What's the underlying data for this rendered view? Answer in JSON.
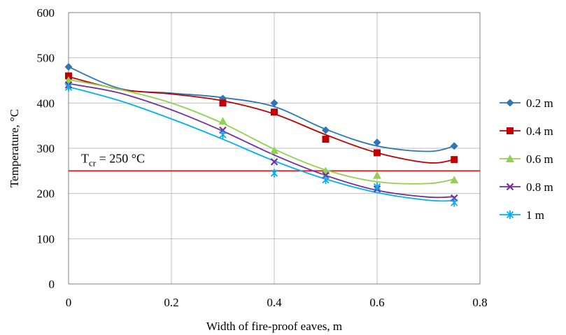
{
  "chart_data": {
    "type": "scatter",
    "xlabel": "Width of fire-proof eaves, m",
    "ylabel": "Temperature, °C",
    "xlim": [
      0,
      0.8
    ],
    "ylim": [
      0,
      600
    ],
    "xticks": [
      0,
      0.2,
      0.4,
      0.6,
      0.8
    ],
    "xtick_labels": [
      "0",
      "0.2",
      "0.4",
      "0.6",
      "0.8"
    ],
    "yticks": [
      0,
      100,
      200,
      300,
      400,
      500,
      600
    ],
    "ytick_labels": [
      "0",
      "100",
      "200",
      "300",
      "400",
      "500",
      "600"
    ],
    "grid": true,
    "legend_position": "right",
    "x": [
      0,
      0.3,
      0.4,
      0.5,
      0.6,
      0.75
    ],
    "series": [
      {
        "name": "0.2 m",
        "color": "#2e75b6",
        "marker": "diamond",
        "values": [
          480,
          410,
          400,
          340,
          313,
          305
        ],
        "trend": [
          [
            0,
            480
          ],
          [
            0.1,
            432
          ],
          [
            0.2,
            422
          ],
          [
            0.3,
            412
          ],
          [
            0.4,
            392
          ],
          [
            0.5,
            342
          ],
          [
            0.6,
            305
          ],
          [
            0.7,
            293
          ],
          [
            0.75,
            305
          ]
        ]
      },
      {
        "name": "0.4 m",
        "color": "#c00000",
        "marker": "square",
        "values": [
          460,
          400,
          380,
          320,
          290,
          275
        ],
        "trend": [
          [
            0,
            458
          ],
          [
            0.1,
            430
          ],
          [
            0.2,
            420
          ],
          [
            0.3,
            405
          ],
          [
            0.4,
            376
          ],
          [
            0.5,
            330
          ],
          [
            0.6,
            290
          ],
          [
            0.7,
            268
          ],
          [
            0.75,
            275
          ]
        ]
      },
      {
        "name": "0.6 m",
        "color": "#92d050",
        "marker": "triangle",
        "values": [
          450,
          360,
          295,
          250,
          240,
          230
        ],
        "trend": [
          [
            0,
            452
          ],
          [
            0.1,
            430
          ],
          [
            0.2,
            400
          ],
          [
            0.3,
            355
          ],
          [
            0.4,
            298
          ],
          [
            0.5,
            252
          ],
          [
            0.6,
            226
          ],
          [
            0.7,
            222
          ],
          [
            0.75,
            232
          ]
        ]
      },
      {
        "name": "0.8 m",
        "color": "#7030a0",
        "marker": "x",
        "values": [
          440,
          340,
          270,
          240,
          210,
          190
        ],
        "trend": [
          [
            0,
            443
          ],
          [
            0.1,
            422
          ],
          [
            0.2,
            385
          ],
          [
            0.3,
            338
          ],
          [
            0.4,
            285
          ],
          [
            0.5,
            240
          ],
          [
            0.6,
            207
          ],
          [
            0.7,
            192
          ],
          [
            0.75,
            193
          ]
        ]
      },
      {
        "name": "1 m",
        "color": "#00b0f0",
        "marker": "star",
        "values": [
          435,
          330,
          245,
          230,
          215,
          180
        ],
        "trend": [
          [
            0,
            436
          ],
          [
            0.1,
            405
          ],
          [
            0.2,
            365
          ],
          [
            0.3,
            320
          ],
          [
            0.4,
            272
          ],
          [
            0.5,
            232
          ],
          [
            0.6,
            202
          ],
          [
            0.7,
            185
          ],
          [
            0.75,
            184
          ]
        ]
      }
    ],
    "reference_line": {
      "y": 250,
      "color": "#e02020",
      "label": "T",
      "label_sub": "cr",
      "label_rest": " = 250 °C"
    }
  }
}
